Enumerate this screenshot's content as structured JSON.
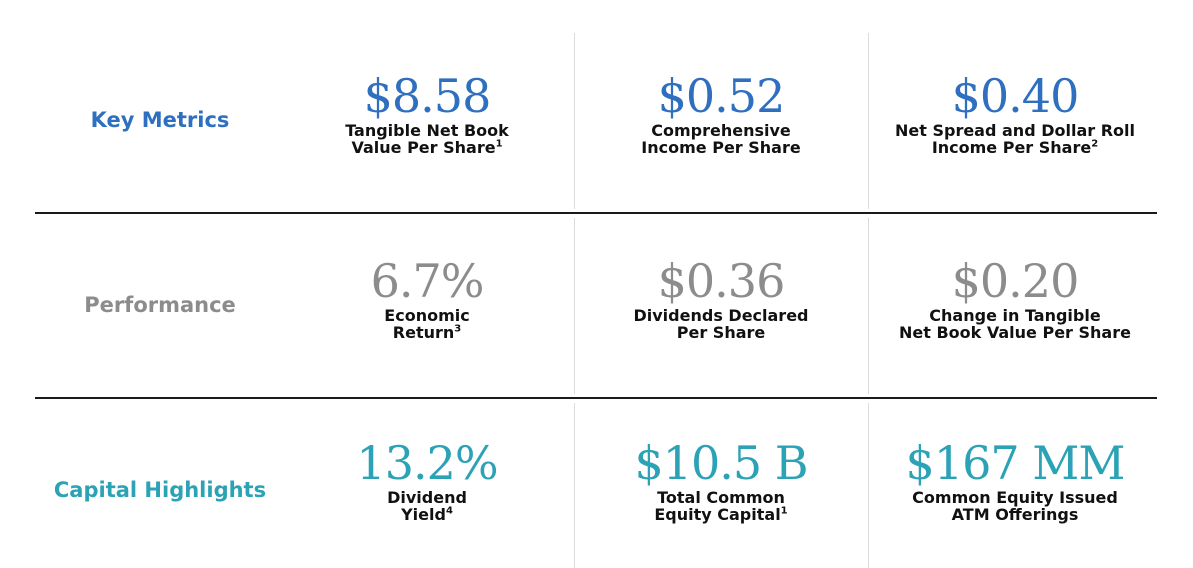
{
  "colors": {
    "key_metrics": "#2f6fbf",
    "performance": "#8c8c8c",
    "capital_highlights": "#2ba2b5"
  },
  "rows": [
    {
      "label": "Key Metrics",
      "cells": [
        {
          "value": "$8.58",
          "desc_line1": "Tangible Net Book",
          "desc_line2": "Value Per Share",
          "sup": "1"
        },
        {
          "value": "$0.52",
          "desc_line1": "Comprehensive",
          "desc_line2": "Income Per Share",
          "sup": ""
        },
        {
          "value": "$0.40",
          "desc_line1": "Net Spread and Dollar Roll",
          "desc_line2": "Income Per Share",
          "sup": "2"
        }
      ]
    },
    {
      "label": "Performance",
      "cells": [
        {
          "value": "6.7%",
          "desc_line1": "Economic",
          "desc_line2": "Return",
          "sup": "3"
        },
        {
          "value": "$0.36",
          "desc_line1": "Dividends Declared",
          "desc_line2": "Per Share",
          "sup": ""
        },
        {
          "value": "$0.20",
          "desc_line1": "Change in Tangible",
          "desc_line2": "Net Book Value Per Share",
          "sup": ""
        }
      ]
    },
    {
      "label": "Capital Highlights",
      "cells": [
        {
          "value": "13.2%",
          "desc_line1": "Dividend",
          "desc_line2": "Yield",
          "sup": "4"
        },
        {
          "value": "$10.5 B",
          "desc_line1": "Total Common",
          "desc_line2": "Equity Capital",
          "sup": "1"
        },
        {
          "value": "$167 MM",
          "desc_line1": "Common Equity Issued",
          "desc_line2": "ATM Offerings",
          "sup": ""
        }
      ]
    }
  ]
}
